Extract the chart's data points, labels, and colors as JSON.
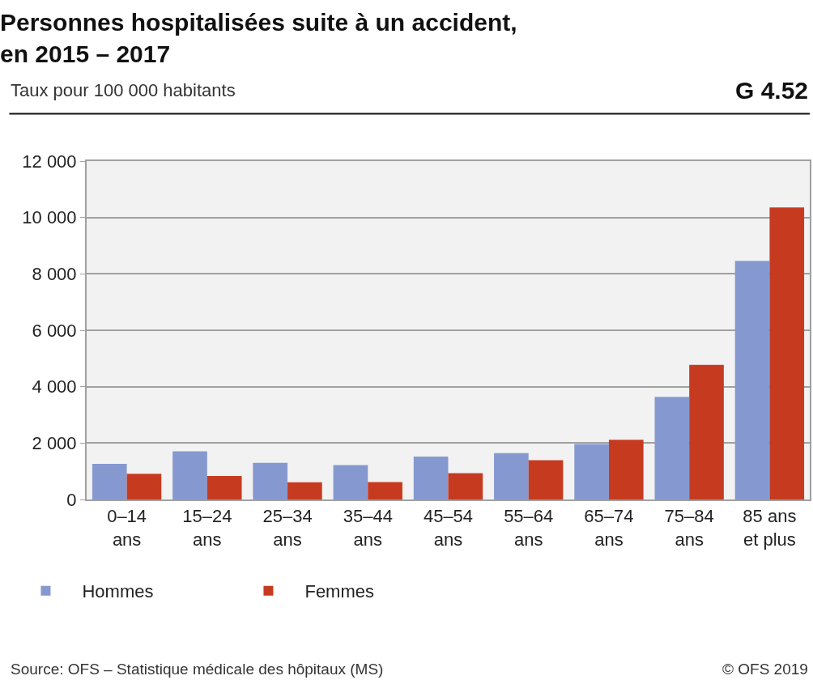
{
  "chart_data": {
    "type": "bar",
    "title": "Personnes hospitalisées suite à un accident,\nen 2015 – 2017",
    "subtitle": "Taux pour 100 000 habitants",
    "annotations": [
      "G 4.52",
      "Source: OFS – Statistique médicale des hôpitaux (MS)",
      "© OFS 2019"
    ],
    "categories": [
      "0–14\nans",
      "15–24\nans",
      "25–34\nans",
      "35–44\nans",
      "45–54\nans",
      "55–64\nans",
      "65–74\nans",
      "75–84\nans",
      "85 ans\net plus"
    ],
    "series": [
      {
        "name": "Hommes",
        "color": "#8599d0",
        "values": [
          1260,
          1710,
          1300,
          1220,
          1520,
          1640,
          1970,
          3640,
          8460
        ]
      },
      {
        "name": "Femmes",
        "color": "#c63b20",
        "values": [
          910,
          830,
          610,
          620,
          930,
          1390,
          2120,
          4770,
          10360
        ]
      }
    ],
    "ylim": [
      0,
      12000
    ],
    "yticks": [
      0,
      {
        "value": 2000,
        "label": "2 000"
      },
      {
        "value": 4000,
        "label": "4 000"
      },
      {
        "value": 6000,
        "label": "6 000"
      },
      {
        "value": 8000,
        "label": "8 000"
      },
      {
        "value": 10000,
        "label": "10 000"
      },
      {
        "value": 12000,
        "label": "12 000"
      }
    ],
    "grid": "y",
    "legend": "bottom left"
  }
}
